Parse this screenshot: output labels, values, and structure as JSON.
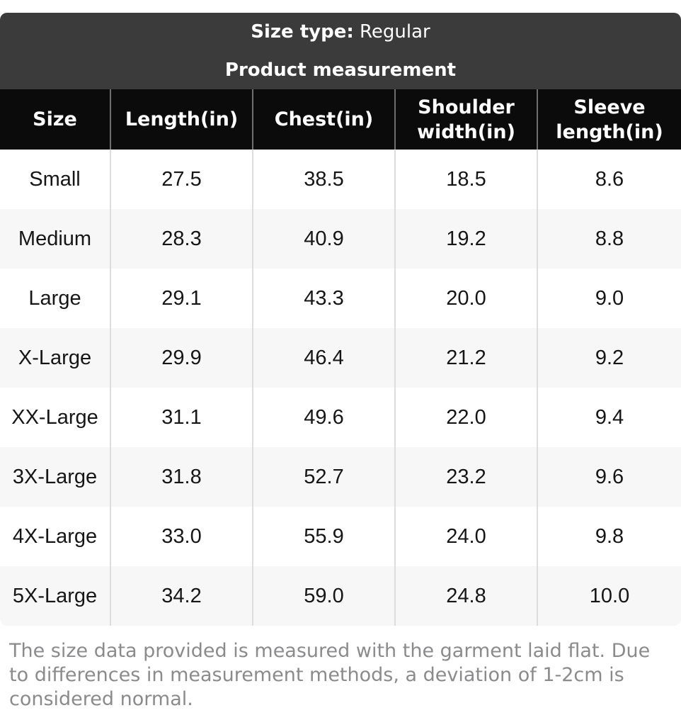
{
  "header_bar": {
    "size_type_label": "Size type:",
    "size_type_value": "Regular",
    "subtitle": "Product measurement"
  },
  "table": {
    "columns": [
      "Size",
      "Length(in)",
      "Chest(in)",
      "Shoulder width(in)",
      "Sleeve length(in)"
    ],
    "rows": [
      [
        "Small",
        "27.5",
        "38.5",
        "18.5",
        "8.6"
      ],
      [
        "Medium",
        "28.3",
        "40.9",
        "19.2",
        "8.8"
      ],
      [
        "Large",
        "29.1",
        "43.3",
        "20.0",
        "9.0"
      ],
      [
        "X-Large",
        "29.9",
        "46.4",
        "21.2",
        "9.2"
      ],
      [
        "XX-Large",
        "31.1",
        "49.6",
        "22.0",
        "9.4"
      ],
      [
        "3X-Large",
        "31.8",
        "52.7",
        "23.2",
        "9.6"
      ],
      [
        "4X-Large",
        "33.0",
        "55.9",
        "24.0",
        "9.8"
      ],
      [
        "5X-Large",
        "34.2",
        "59.0",
        "24.8",
        "10.0"
      ]
    ]
  },
  "footnote": "The size data provided is measured with the garment laid flat. Due to differences in measurement methods, a deviation of 1-2cm is considered normal.",
  "colors": {
    "bar_bg": "#3b3b3c",
    "table_header_bg": "#0b0b0b",
    "alt_row_bg": "#f7f7f7",
    "body_divider": "#dddddd",
    "header_divider": "#6f6f6f",
    "footnote_text": "#8b8b8d"
  }
}
